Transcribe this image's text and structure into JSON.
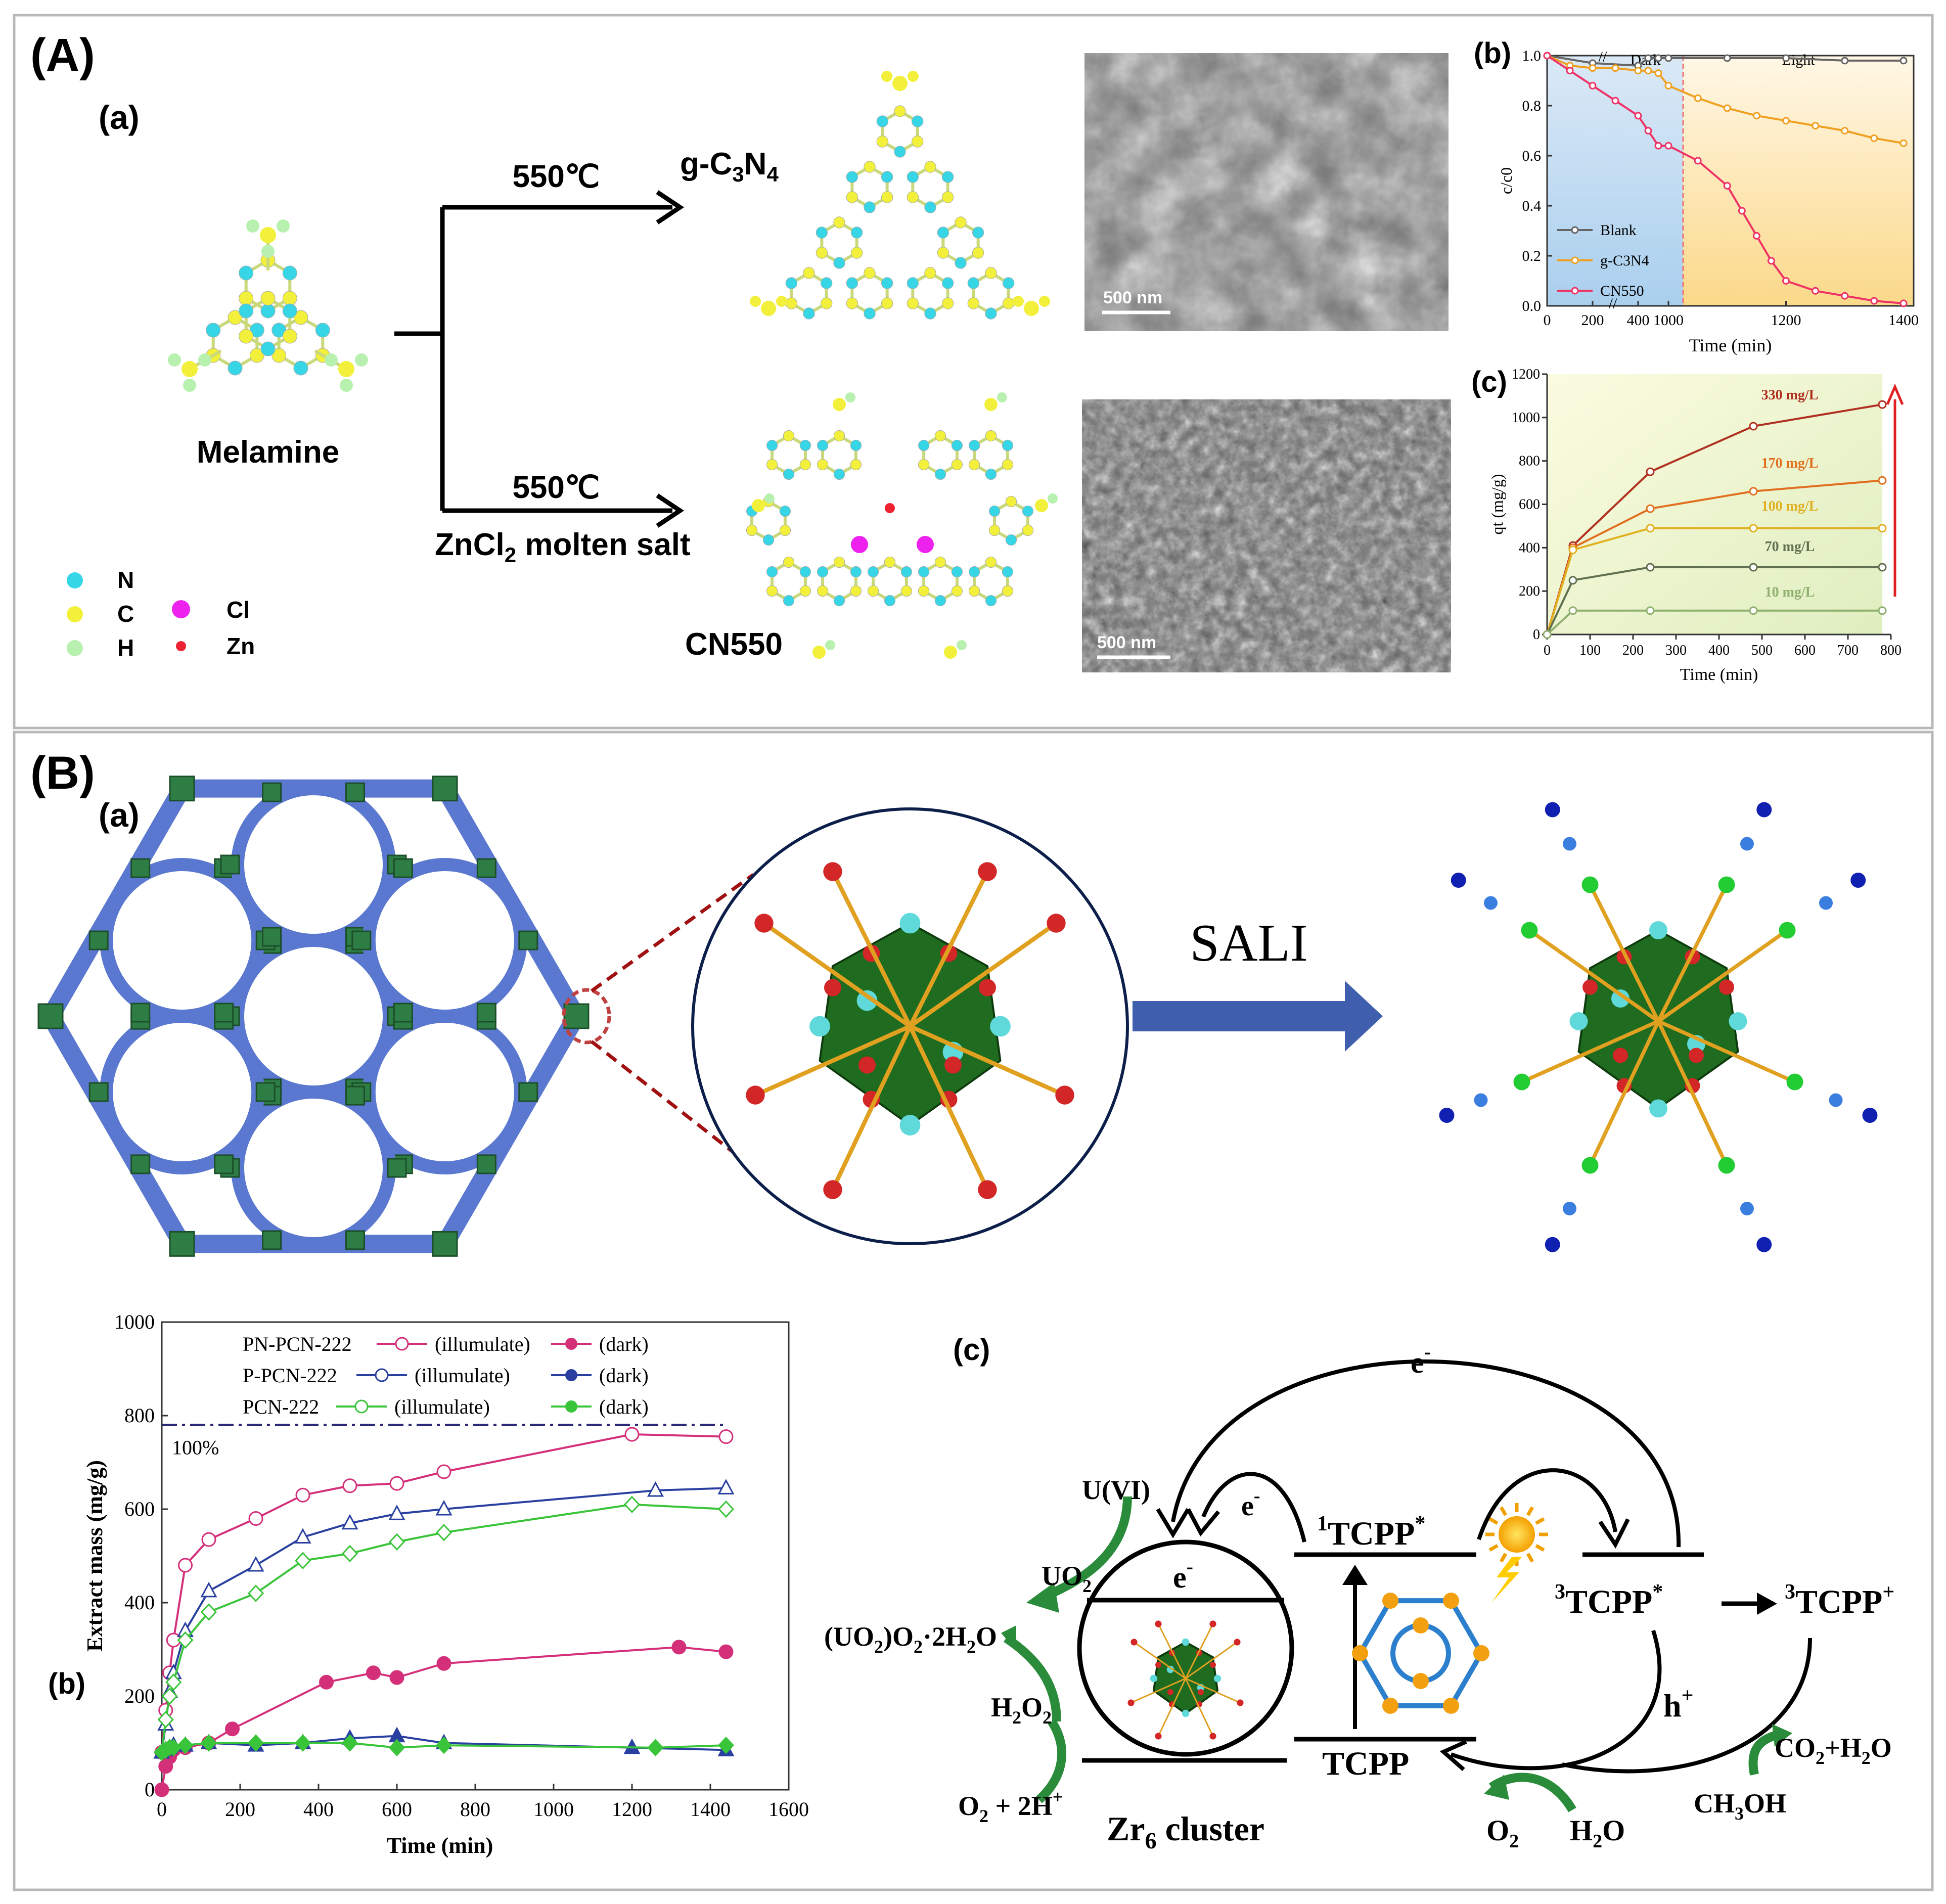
{
  "panel_A": {
    "label": "(A)",
    "sub_a": "(a)",
    "temp_top": "550℃",
    "temp_bottom": "550℃",
    "salt": "ZnCl",
    "salt_sub": "2",
    "salt_rest": " molten salt",
    "product_top": "g-C",
    "product_top_sub1": "3",
    "product_top_mid": "N",
    "product_top_sub2": "4",
    "product_bottom": "CN550",
    "precursor": "Melamine",
    "legend": {
      "n": "N",
      "c": "C",
      "h": "H",
      "cl": "Cl",
      "zn": "Zn"
    },
    "colors": {
      "n": "#36d6e6",
      "c": "#f2f03a",
      "h": "#b8f0b0",
      "cl": "#ee22ee",
      "zn": "#ee2233"
    },
    "sem_scale_top": "500 nm",
    "sem_scale_bottom": "500 nm"
  },
  "panel_A_b": {
    "label": "(b)",
    "dark_label": "Dark",
    "light_label": "Light",
    "break_mark": "//"
  },
  "panel_A_c": {
    "label": "(c)"
  },
  "panel_B": {
    "label": "(B)",
    "sub_a": "(a)",
    "sali": "SALI",
    "sub_c": "(c)",
    "diagram": {
      "e1": "e",
      "e2": "e",
      "e3": "e",
      "e_sup": "-",
      "tcpp1": "TCPP",
      "tcpp1_pre": "1",
      "tcpp1_post": "*",
      "tcpp3": "TCPP",
      "tcpp3_pre": "3",
      "tcpp3_post": "*",
      "tcpp3plus": "TCPP",
      "tcpp3plus_pre": "3",
      "tcpp3plus_post": "+",
      "tcpp": "TCPP",
      "hplus": "h",
      "hplus_sup": "+",
      "u6": "U(VI)",
      "uo2": "UO",
      "uo2_sub": "2",
      "peroxide": "(UO",
      "peroxide_sub1": "2",
      "peroxide_mid": ")O",
      "peroxide_sub2": "2",
      "peroxide_end": "·2H",
      "peroxide_sub3": "2",
      "peroxide_o": "O",
      "h2o2": "H",
      "h2o2_sub1": "2",
      "h2o2_mid": "O",
      "h2o2_sub2": "2",
      "o2_2h": "O",
      "o2_2h_sub": "2",
      "o2_2h_mid": " + 2H",
      "o2_2h_sup": "+",
      "zr6": "Zr",
      "zr6_sub": "6",
      "zr6_rest": " cluster",
      "o2": "O",
      "o2_sub": "2",
      "h2o": "H",
      "h2o_sub": "2",
      "h2o_end": "O",
      "co2": "CO",
      "co2_sub": "2",
      "co2_mid": "+H",
      "co2_sub2": "2",
      "co2_end": "O",
      "ch3oh": "CH",
      "ch3oh_sub": "3",
      "ch3oh_end": "OH"
    }
  },
  "chart_data": [
    {
      "id": "A-b",
      "type": "line",
      "xlabel": "Time (min)",
      "ylabel": "c/c0",
      "xticks": [
        "0",
        "200",
        "400",
        "1000",
        "1200",
        "1400"
      ],
      "yticks": [
        "0.0",
        "0.2",
        "0.4",
        "0.6",
        "0.8",
        "1.0"
      ],
      "ylim": [
        0,
        1.0
      ],
      "regions": [
        "Dark",
        "Light"
      ],
      "series": [
        {
          "name": "Blank",
          "color": "#666666",
          "x": [
            0,
            200,
            400,
            600,
            800,
            1000,
            1100,
            1200,
            1300,
            1400
          ],
          "y": [
            1.0,
            0.97,
            0.96,
            0.99,
            0.99,
            0.99,
            0.99,
            0.99,
            0.98,
            0.98
          ]
        },
        {
          "name": "g-C3N4",
          "color": "#f0a020",
          "x": [
            0,
            100,
            200,
            300,
            400,
            600,
            800,
            1000,
            1050,
            1100,
            1150,
            1200,
            1250,
            1300,
            1350,
            1400
          ],
          "y": [
            1.0,
            0.96,
            0.95,
            0.95,
            0.94,
            0.94,
            0.93,
            0.88,
            0.83,
            0.79,
            0.76,
            0.74,
            0.72,
            0.7,
            0.67,
            0.65
          ]
        },
        {
          "name": "CN550",
          "color": "#ee3366",
          "x": [
            0,
            100,
            200,
            300,
            400,
            600,
            800,
            1000,
            1050,
            1100,
            1125,
            1150,
            1175,
            1200,
            1250,
            1300,
            1350,
            1400
          ],
          "y": [
            1.0,
            0.94,
            0.88,
            0.82,
            0.76,
            0.7,
            0.64,
            0.64,
            0.58,
            0.48,
            0.38,
            0.28,
            0.18,
            0.1,
            0.06,
            0.04,
            0.02,
            0.01
          ]
        }
      ]
    },
    {
      "id": "A-c",
      "type": "line",
      "xlabel": "Time (min)",
      "ylabel": "qt (mg/g)",
      "xticks": [
        "0",
        "100",
        "200",
        "300",
        "400",
        "500",
        "600",
        "700",
        "800"
      ],
      "yticks": [
        "0",
        "200",
        "400",
        "600",
        "800",
        "1000",
        "1200"
      ],
      "xlim": [
        0,
        800
      ],
      "ylim": [
        0,
        1200
      ],
      "series": [
        {
          "name": "330 mg/L",
          "color": "#b03020",
          "x": [
            0,
            60,
            240,
            480,
            780
          ],
          "y": [
            0,
            410,
            750,
            960,
            1060
          ]
        },
        {
          "name": "170 mg/L",
          "color": "#e07020",
          "x": [
            0,
            60,
            240,
            480,
            780
          ],
          "y": [
            0,
            400,
            580,
            660,
            710
          ]
        },
        {
          "name": "100 mg/L",
          "color": "#e0b020",
          "x": [
            0,
            60,
            240,
            480,
            780
          ],
          "y": [
            0,
            390,
            490,
            490,
            490
          ]
        },
        {
          "name": "70 mg/L",
          "color": "#607050",
          "x": [
            0,
            60,
            240,
            480,
            780
          ],
          "y": [
            0,
            250,
            310,
            310,
            310
          ]
        },
        {
          "name": "10 mg/L",
          "color": "#90b070",
          "x": [
            0,
            60,
            240,
            480,
            780
          ],
          "y": [
            0,
            110,
            110,
            110,
            110
          ]
        }
      ]
    },
    {
      "id": "B-b",
      "type": "line",
      "xlabel": "Time (min)",
      "ylabel": "Extract mass (mg/g)",
      "xticks": [
        "0",
        "200",
        "400",
        "600",
        "800",
        "1000",
        "1200",
        "1400",
        "1600"
      ],
      "yticks": [
        "0",
        "200",
        "400",
        "600",
        "800",
        "1000"
      ],
      "xlim": [
        0,
        1600
      ],
      "ylim": [
        0,
        1000
      ],
      "reference": {
        "value": 780,
        "label": "100%"
      },
      "legend": [
        {
          "material": "PN-PCN-222",
          "illum": "(illumulate)",
          "dark": "(dark)"
        },
        {
          "material": "P-PCN-222",
          "illum": "(illumulate)",
          "dark": "(dark)"
        },
        {
          "material": "PCN-222",
          "illum": "(illumulate)",
          "dark": "(dark)"
        }
      ],
      "series": [
        {
          "name": "PN-PCN-222 (illumulate)",
          "color": "#d4307a",
          "marker": "half-circle",
          "x": [
            0,
            10,
            20,
            30,
            60,
            120,
            240,
            360,
            480,
            600,
            720,
            1200,
            1440
          ],
          "y": [
            80,
            170,
            250,
            320,
            480,
            535,
            580,
            630,
            650,
            655,
            680,
            760,
            755
          ]
        },
        {
          "name": "PN-PCN-222 (dark)",
          "color": "#d4307a",
          "marker": "circle",
          "x": [
            0,
            10,
            20,
            30,
            60,
            120,
            180,
            420,
            540,
            600,
            720,
            1320,
            1440
          ],
          "y": [
            0,
            50,
            70,
            85,
            90,
            100,
            130,
            230,
            250,
            240,
            270,
            305,
            295
          ]
        },
        {
          "name": "P-PCN-222 (illumulate)",
          "color": "#2a40a0",
          "marker": "open-triangle",
          "x": [
            0,
            10,
            20,
            30,
            60,
            120,
            240,
            360,
            480,
            600,
            720,
            1260,
            1440
          ],
          "y": [
            80,
            140,
            210,
            250,
            340,
            425,
            480,
            540,
            570,
            590,
            600,
            640,
            645
          ]
        },
        {
          "name": "P-PCN-222 (dark)",
          "color": "#2a40a0",
          "marker": "triangle",
          "x": [
            0,
            10,
            20,
            30,
            60,
            120,
            240,
            360,
            480,
            600,
            720,
            1200,
            1440
          ],
          "y": [
            80,
            85,
            90,
            95,
            95,
            100,
            95,
            100,
            110,
            115,
            100,
            90,
            85
          ]
        },
        {
          "name": "PCN-222 (illumulate)",
          "color": "#3ac43a",
          "marker": "half-diamond",
          "x": [
            0,
            10,
            20,
            30,
            60,
            120,
            240,
            360,
            480,
            600,
            720,
            1200,
            1440
          ],
          "y": [
            80,
            150,
            200,
            230,
            320,
            380,
            420,
            490,
            505,
            530,
            550,
            610,
            600
          ]
        },
        {
          "name": "PCN-222 (dark)",
          "color": "#3ac43a",
          "marker": "diamond",
          "x": [
            0,
            10,
            20,
            30,
            60,
            120,
            240,
            360,
            480,
            600,
            720,
            1260,
            1440
          ],
          "y": [
            80,
            85,
            90,
            90,
            95,
            100,
            100,
            100,
            100,
            90,
            95,
            90,
            95
          ]
        }
      ]
    }
  ]
}
